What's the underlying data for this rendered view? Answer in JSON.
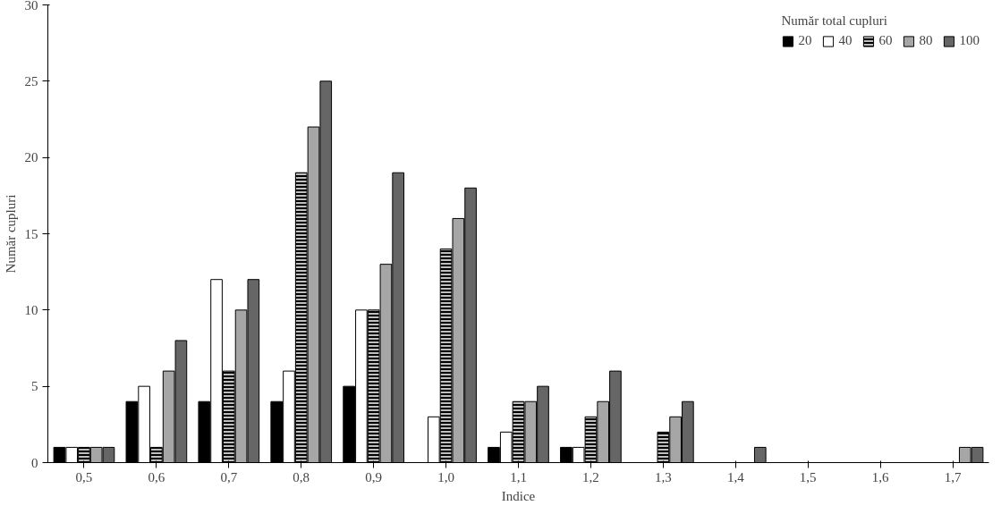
{
  "chart_data": {
    "type": "bar",
    "xlabel": "Indice",
    "ylabel": "Număr cupluri",
    "legend_title": "Număr total cupluri",
    "legend": "top right",
    "grid": false,
    "categories": [
      "0,5",
      "0,6",
      "0,7",
      "0,8",
      "0,9",
      "1,0",
      "1,1",
      "1,2",
      "1,3",
      "1,4",
      "1,5",
      "1,6",
      "1,7"
    ],
    "ylim": [
      0,
      30
    ],
    "yticks": [
      0,
      5,
      10,
      15,
      20,
      25,
      30
    ],
    "series": [
      {
        "name": "20",
        "color": "#000000",
        "values": [
          1,
          4,
          4,
          4,
          5,
          0,
          1,
          1,
          0,
          0,
          0,
          0,
          0
        ]
      },
      {
        "name": "40",
        "color": "#ffffff",
        "values": [
          1,
          5,
          12,
          6,
          10,
          3,
          2,
          1,
          0,
          0,
          0,
          0,
          0
        ]
      },
      {
        "name": "60",
        "color": "#000000",
        "values": [
          1,
          1,
          6,
          19,
          10,
          14,
          4,
          3,
          2,
          0,
          0,
          0,
          0
        ]
      },
      {
        "name": "80",
        "color": "#a6a6a6",
        "values": [
          1,
          6,
          10,
          22,
          13,
          16,
          4,
          4,
          3,
          0,
          0,
          0,
          1
        ]
      },
      {
        "name": "100",
        "color": "#666666",
        "values": [
          1,
          8,
          12,
          25,
          19,
          18,
          5,
          6,
          4,
          1,
          0,
          0,
          1
        ]
      }
    ]
  }
}
